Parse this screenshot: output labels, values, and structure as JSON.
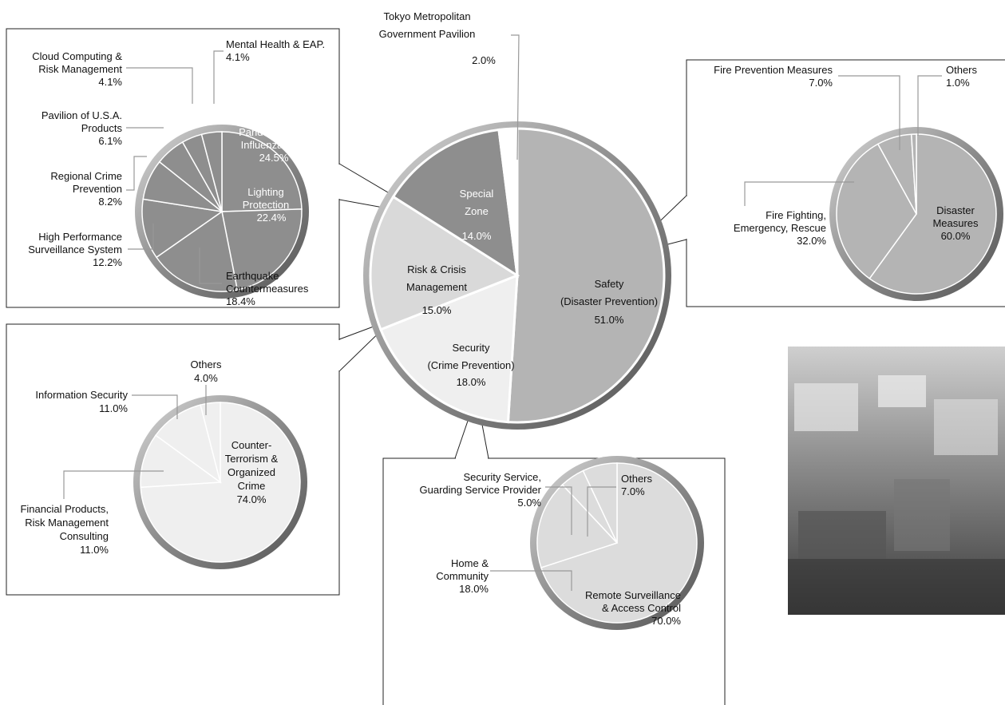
{
  "chart_data": [
    {
      "type": "pie",
      "categories": [
        "Safety\n(Disaster Prevention)",
        "Security\n(Crime Prevention)",
        "Risk & Crisis\nManagement",
        "Special\nZone",
        "Tokyo Metropolitan\nGovernment Pavilion"
      ],
      "values": [
        51.0,
        18.0,
        15.0,
        14.0,
        2.0
      ],
      "value_labels": [
        "51.0%",
        "18.0%",
        "15.0%",
        "14.0%",
        "2.0%"
      ],
      "colors": [
        "#b4b4b4",
        "#efefef",
        "#d9d9d9",
        "#8e8e8e",
        "#ffffff"
      ]
    },
    {
      "type": "pie",
      "categories": [
        "Pandemic\nInfluenza",
        "Lighting\nProtection",
        "Earthquake\nCountermeasures",
        "High Performance\nSurveillance System",
        "Regional Crime\nPrevention",
        "Pavilion of U.S.A.\nProducts",
        "Cloud Computing &\nRisk Management",
        "Mental Health & EAP."
      ],
      "values": [
        24.5,
        22.4,
        18.4,
        12.2,
        8.2,
        6.1,
        4.1,
        4.1
      ],
      "value_labels": [
        "24.5%",
        "22.4%",
        "18.4%",
        "12.2%",
        "8.2%",
        "6.1%",
        "4.1%",
        "4.1%"
      ],
      "color": "#8e8e8e"
    },
    {
      "type": "pie",
      "categories": [
        "Disaster\nMeasures",
        "Fire Fighting,\nEmergency, Rescue",
        "Fire Prevention Measures",
        "Others"
      ],
      "values": [
        60.0,
        32.0,
        7.0,
        1.0
      ],
      "value_labels": [
        "60.0%",
        "32.0%",
        "7.0%",
        "1.0%"
      ],
      "color": "#b4b4b4"
    },
    {
      "type": "pie",
      "categories": [
        "Counter-\nTerrorism &\nOrganized\nCrime",
        "Financial Products,\nRisk Management\nConsulting",
        "Information Security",
        "Others"
      ],
      "values": [
        74.0,
        11.0,
        11.0,
        4.0
      ],
      "value_labels": [
        "74.0%",
        "11.0%",
        "11.0%",
        "4.0%"
      ],
      "color": "#efefef"
    },
    {
      "type": "pie",
      "categories": [
        "Remote Surveillance\n& Access Control",
        "Home &\nCommunity",
        "Security Service,\nGuarding Service Provider",
        "Others"
      ],
      "values": [
        70.0,
        18.0,
        5.0,
        7.0
      ],
      "value_labels": [
        "70.0%",
        "18.0%",
        "5.0%",
        "7.0%"
      ],
      "color": "#dcdcdc"
    }
  ]
}
